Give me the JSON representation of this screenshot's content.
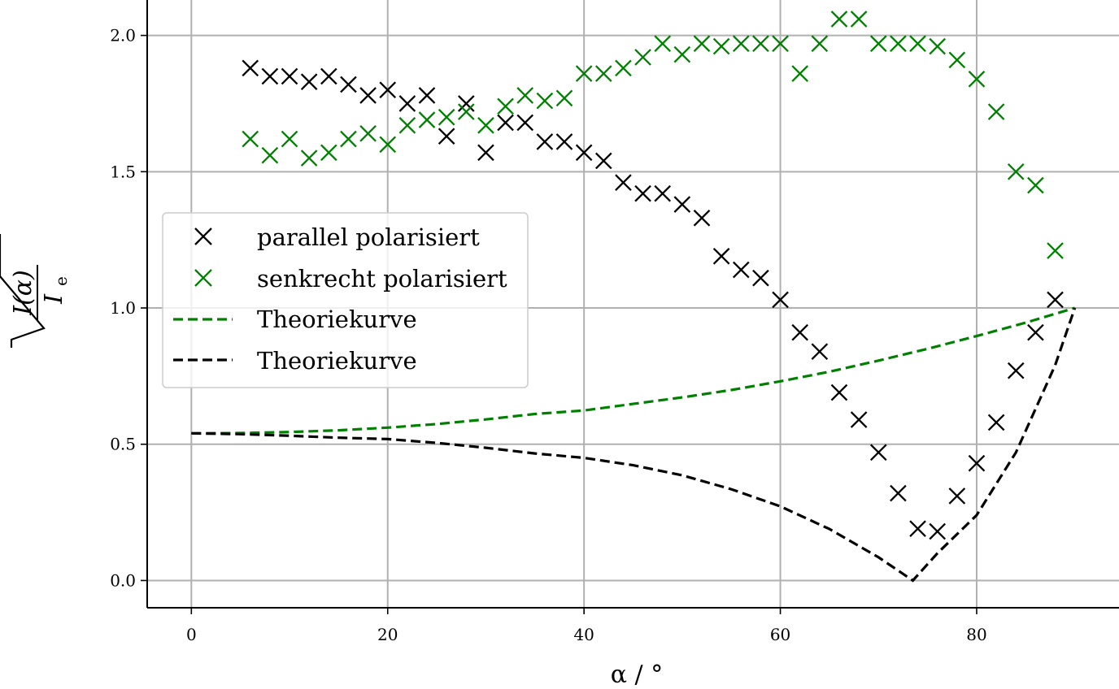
{
  "chart_data": {
    "type": "scatter",
    "xlabel": "α / °",
    "ylabel": "√(I(α)/Iₑ)",
    "ylabel_parts": {
      "numerator": "I(α)",
      "denominator": "I",
      "subscript": "e"
    },
    "xlim": [
      -4.5,
      94.5
    ],
    "ylim": [
      -0.1,
      2.13
    ],
    "x_ticks": [
      0,
      20,
      40,
      60,
      80
    ],
    "x_tick_labels": [
      "0",
      "20",
      "40",
      "60",
      "80"
    ],
    "y_ticks": [
      0.0,
      0.5,
      1.0,
      1.5,
      2.0
    ],
    "y_tick_labels": [
      "0.0",
      "0.5",
      "1.0",
      "1.5",
      "2.0"
    ],
    "grid": true,
    "legend_position": "center-left",
    "series": [
      {
        "name": "parallel polarisiert",
        "kind": "scatter",
        "marker": "x",
        "color": "#000000",
        "x": [
          6,
          8,
          10,
          12,
          14,
          16,
          18,
          20,
          22,
          24,
          26,
          28,
          30,
          32,
          34,
          36,
          38,
          40,
          42,
          44,
          46,
          48,
          50,
          52,
          54,
          56,
          58,
          60,
          62,
          64,
          66,
          68,
          70,
          72,
          74,
          76,
          78,
          80,
          82,
          84,
          86,
          88
        ],
        "y": [
          1.88,
          1.85,
          1.85,
          1.83,
          1.85,
          1.82,
          1.78,
          1.8,
          1.75,
          1.78,
          1.63,
          1.75,
          1.57,
          1.68,
          1.68,
          1.61,
          1.61,
          1.57,
          1.54,
          1.46,
          1.42,
          1.42,
          1.38,
          1.33,
          1.19,
          1.14,
          1.11,
          1.03,
          0.91,
          0.84,
          0.69,
          0.59,
          0.47,
          0.32,
          0.19,
          0.18,
          0.31,
          0.43,
          0.58,
          0.77,
          0.91,
          1.03
        ]
      },
      {
        "name": "senkrecht polarisiert",
        "kind": "scatter",
        "marker": "x",
        "color": "#008000",
        "x": [
          6,
          8,
          10,
          12,
          14,
          16,
          18,
          20,
          22,
          24,
          26,
          28,
          30,
          32,
          34,
          36,
          38,
          40,
          42,
          44,
          46,
          48,
          50,
          52,
          54,
          56,
          58,
          60,
          62,
          64,
          66,
          68,
          70,
          72,
          74,
          76,
          78,
          80,
          82,
          84,
          86,
          88
        ],
        "y": [
          1.62,
          1.56,
          1.62,
          1.55,
          1.57,
          1.62,
          1.64,
          1.6,
          1.67,
          1.69,
          1.7,
          1.72,
          1.67,
          1.74,
          1.78,
          1.76,
          1.77,
          1.86,
          1.86,
          1.88,
          1.92,
          1.97,
          1.93,
          1.97,
          1.96,
          1.97,
          1.97,
          1.97,
          1.86,
          1.97,
          2.06,
          2.06,
          1.97,
          1.97,
          1.97,
          1.96,
          1.91,
          1.84,
          1.72,
          1.5,
          1.45,
          1.21
        ]
      },
      {
        "name": "Theoriekurve",
        "kind": "line",
        "style": "dashed",
        "color": "#008000",
        "x": [
          0,
          5,
          10,
          15,
          20,
          25,
          30,
          35,
          40,
          45,
          50,
          55,
          60,
          65,
          70,
          75,
          80,
          85,
          90
        ],
        "y": [
          0.54,
          0.541,
          0.545,
          0.551,
          0.561,
          0.574,
          0.591,
          0.611,
          0.624,
          0.648,
          0.672,
          0.699,
          0.731,
          0.766,
          0.807,
          0.85,
          0.897,
          0.946,
          1.0
        ]
      },
      {
        "name": "Theoriekurve",
        "kind": "line",
        "style": "dashed",
        "color": "#000000",
        "x": [
          0,
          5,
          10,
          15,
          20,
          25,
          30,
          35,
          40,
          45,
          50,
          55,
          60,
          65,
          70,
          73.5,
          76,
          80,
          84,
          88,
          90
        ],
        "y": [
          0.54,
          0.537,
          0.531,
          0.524,
          0.519,
          0.505,
          0.487,
          0.466,
          0.45,
          0.423,
          0.386,
          0.335,
          0.272,
          0.189,
          0.085,
          0.0,
          0.1,
          0.24,
          0.47,
          0.79,
          1.0
        ]
      }
    ]
  }
}
